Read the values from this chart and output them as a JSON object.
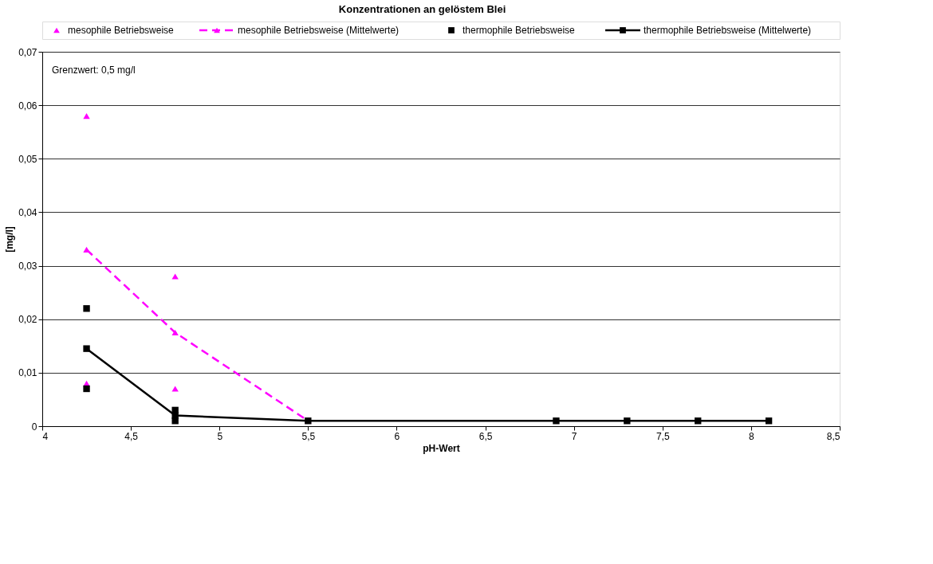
{
  "chart_data": {
    "type": "scatter",
    "title": "Konzentrationen an gelöstem Blei",
    "xlabel": "pH-Wert",
    "ylabel": "[mg/l]",
    "xlim": [
      4,
      8.5
    ],
    "xticks": [
      4,
      {
        "value": 4.5,
        "label": "4,5"
      },
      5,
      {
        "value": 5.5,
        "label": "5,5"
      },
      6,
      {
        "value": 6.5,
        "label": "6,5"
      },
      7,
      {
        "value": 7.5,
        "label": "7,5"
      },
      8,
      {
        "value": 8.5,
        "label": "8,5"
      }
    ],
    "ylim": [
      0,
      0.07
    ],
    "yticks": [
      0,
      {
        "value": 0.01,
        "label": "0,01"
      },
      {
        "value": 0.02,
        "label": "0,02"
      },
      {
        "value": 0.03,
        "label": "0,03"
      },
      {
        "value": 0.04,
        "label": "0,04"
      },
      {
        "value": 0.05,
        "label": "0,05"
      },
      {
        "value": 0.06,
        "label": "0,06"
      },
      {
        "value": 0.07,
        "label": "0,07"
      }
    ],
    "grid": "y",
    "legend": "top",
    "annotations": [
      "Grenzwert: 0,5 mg/l"
    ],
    "series": [
      {
        "name": "mesophile Betriebsweise",
        "marker": "triangle",
        "color": "#ff00ff",
        "x": [
          4.25,
          4.25,
          4.75,
          4.75
        ],
        "values": [
          0.058,
          0.008,
          0.028,
          0.007
        ]
      },
      {
        "name": "mesophile Betriebsweise (Mittelwerte)",
        "type": "line",
        "marker": "triangle",
        "line_style": "dashed",
        "color": "#ff00ff",
        "x": [
          4.25,
          4.75,
          5.5
        ],
        "values": [
          0.033,
          0.0175,
          0.001
        ]
      },
      {
        "name": "thermophile Betriebsweise",
        "marker": "square",
        "color": "#000000",
        "x": [
          4.25,
          4.25,
          4.75,
          4.75
        ],
        "values": [
          0.022,
          0.007,
          0.003,
          0.001
        ]
      },
      {
        "name": "thermophile Betriebsweise (Mittelwerte)",
        "type": "line",
        "marker": "square",
        "line_style": "solid",
        "color": "#000000",
        "x": [
          4.25,
          4.75,
          5.5,
          6.9,
          7.3,
          7.7,
          8.1
        ],
        "values": [
          0.0145,
          0.002,
          0.001,
          0.001,
          0.001,
          0.001,
          0.001
        ]
      }
    ]
  }
}
